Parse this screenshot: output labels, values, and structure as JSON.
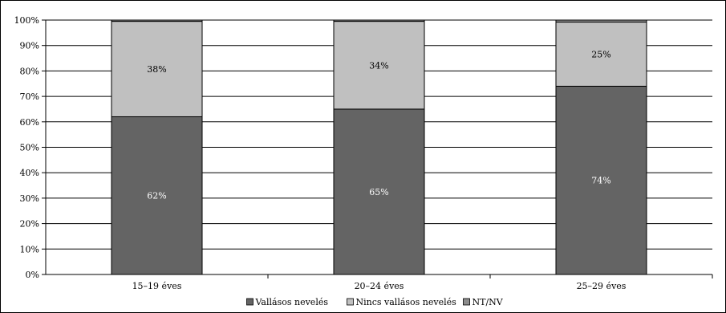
{
  "chart_data": {
    "type": "bar",
    "stacked": true,
    "categories": [
      "15–19 éves",
      "20–24 éves",
      "25–29 éves"
    ],
    "series": [
      {
        "name": "Vallásos nevelés",
        "values": [
          62,
          65,
          74
        ],
        "labels": [
          "62%",
          "65%",
          "74%"
        ],
        "color": "#646464",
        "label_color": "#ffffff"
      },
      {
        "name": "Nincs vallásos nevelés",
        "values": [
          37.5,
          34.5,
          25.2
        ],
        "labels": [
          "38%",
          "34%",
          "25%"
        ],
        "color": "#c0c0c0",
        "label_color": "#000000"
      },
      {
        "name": "NT/NV",
        "values": [
          0.5,
          0.5,
          0.8
        ],
        "labels": [
          "",
          "",
          ""
        ],
        "color": "#8c8c8c",
        "label_color": "#000000"
      }
    ],
    "y_ticks": [
      "0%",
      "10%",
      "20%",
      "30%",
      "40%",
      "50%",
      "60%",
      "70%",
      "80%",
      "90%",
      "100%"
    ],
    "ylim": [
      0,
      100
    ],
    "grid": true,
    "legend_position": "bottom"
  }
}
